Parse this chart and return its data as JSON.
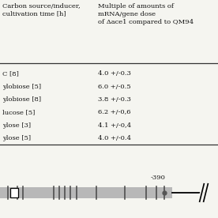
{
  "table_header_left": "Carbon source/inducer,\ncultivation time [h]",
  "table_header_right": "Multiple of amounts of\nmRNA/gene dose\nof Δace1 compared to QM94",
  "rows": [
    [
      "C [8]",
      "4.0 +/-0.3"
    ],
    [
      "ylobiose [5]",
      "6.0 +/-0.5"
    ],
    [
      "ylobiose [8]",
      "3.8 +/-0.3"
    ],
    [
      "lucose [5]",
      "6.2 +/-0,6"
    ],
    [
      "ylose [3]",
      "4.1 +/-0,4"
    ],
    [
      "ylose [5]",
      "4.0 +/-0.4"
    ]
  ],
  "annotation": "-390",
  "bg_color": "#f5f5f0",
  "text_color": "#111111",
  "line_color": "#333333",
  "bar_color": "#b8b8b8",
  "tick_color": "#444444"
}
